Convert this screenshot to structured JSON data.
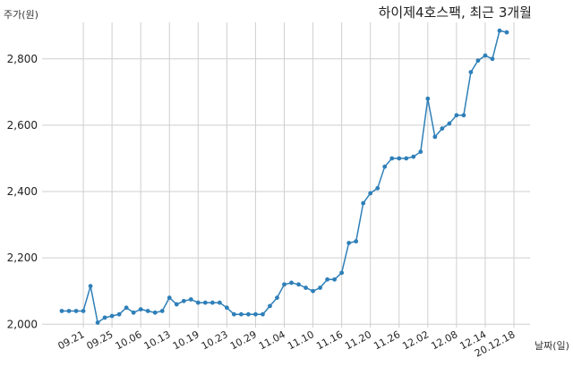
{
  "chart_data": {
    "type": "line",
    "title": "하이제4호스팩, 최근 3개월",
    "ylabel": "주가(원)",
    "xlabel": "날짜(일)",
    "ylim": [
      1990,
      2910
    ],
    "yticks": [
      2000,
      2200,
      2400,
      2600,
      2800
    ],
    "ytick_labels": [
      "2,000",
      "2,200",
      "2,400",
      "2,600",
      "2,800"
    ],
    "xtick_labels": [
      "09.21",
      "09.25",
      "10.06",
      "10.13",
      "10.19",
      "10.23",
      "10.29",
      "11.04",
      "11.10",
      "11.16",
      "11.20",
      "11.26",
      "12.02",
      "12.08",
      "12.14",
      "20.12.18"
    ],
    "xtick_indices": [
      3,
      7,
      11,
      15,
      19,
      23,
      27,
      31,
      35,
      39,
      43,
      47,
      51,
      55,
      59,
      63
    ],
    "grid": true,
    "color": "#2e7fb8",
    "series": [
      {
        "values": [
          2040,
          2040,
          2040,
          2040,
          2115,
          2005,
          2020,
          2025,
          2030,
          2050,
          2035,
          2045,
          2040,
          2035,
          2040,
          2080,
          2060,
          2070,
          2075,
          2065,
          2065,
          2065,
          2065,
          2050,
          2030,
          2030,
          2030,
          2030,
          2030,
          2055,
          2080,
          2120,
          2125,
          2120,
          2110,
          2100,
          2110,
          2135,
          2135,
          2155,
          2245,
          2250,
          2365,
          2395,
          2410,
          2475,
          2500,
          2500,
          2500,
          2505,
          2520,
          2680,
          2565,
          2590,
          2605,
          2630,
          2630,
          2760,
          2795,
          2810,
          2800,
          2885,
          2880
        ]
      }
    ]
  }
}
